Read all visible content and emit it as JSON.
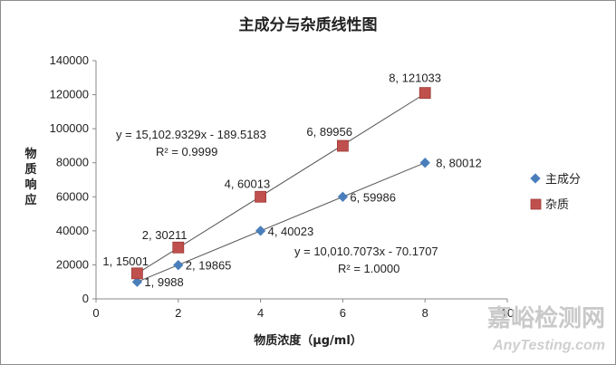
{
  "chart_data": {
    "type": "scatter",
    "title": "主成分与杂质线性图",
    "xlabel": "物质浓度（μg/ml）",
    "ylabel": "物质响应",
    "xlim": [
      0,
      10
    ],
    "ylim": [
      0,
      140000
    ],
    "x_ticks": [
      "0",
      "2",
      "4",
      "6",
      "8",
      "10"
    ],
    "y_ticks": [
      "0",
      "20000",
      "40000",
      "60000",
      "80000",
      "100000",
      "120000",
      "140000"
    ],
    "legend_position": "right",
    "series": [
      {
        "name": "主成分",
        "marker": "diamond",
        "color": "#4a7ebb",
        "x": [
          1,
          2,
          4,
          6,
          8
        ],
        "y": [
          9988,
          19865,
          40023,
          59986,
          80012
        ],
        "labels": [
          "1, 9988",
          "2, 19865",
          "4, 40023",
          "6, 59986",
          "8, 80012"
        ],
        "trendline": {
          "slope": 10010.7073,
          "intercept": -70.1707,
          "equation": "y = 10,010.7073x - 70.1707",
          "r2": "R² = 1.0000"
        }
      },
      {
        "name": "杂质",
        "marker": "square",
        "color": "#c0504d",
        "x": [
          1,
          2,
          4,
          6,
          8
        ],
        "y": [
          15001,
          30211,
          60013,
          89956,
          121033
        ],
        "labels": [
          "1, 15001",
          "2, 30211",
          "4, 60013",
          "6, 89956",
          "8, 121033"
        ],
        "trendline": {
          "slope": 15102.9329,
          "intercept": -189.5183,
          "equation": "y = 15,102.9329x - 189.5183",
          "r2": "R² = 0.9999"
        }
      }
    ]
  },
  "watermark": {
    "line1": "嘉峪检测网",
    "line2": "AnyTesting.com"
  }
}
